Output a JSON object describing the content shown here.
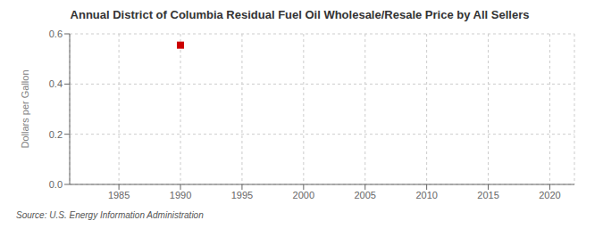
{
  "chart_data": {
    "type": "scatter",
    "title": "Annual District of Columbia Residual Fuel Oil Wholesale/Resale Price by All Sellers",
    "ylabel": "Dollars per Gallon",
    "annotations": [
      "Source: U.S. Energy Information Administration"
    ],
    "x": [
      1990
    ],
    "values": [
      0.555
    ],
    "color": "#cc0000",
    "marker": "square",
    "xlim": [
      1981,
      2022
    ],
    "xticks": [
      1985,
      1990,
      1995,
      2000,
      2005,
      2010,
      2015,
      2020
    ],
    "ylim": [
      0.0,
      0.6
    ],
    "yticks": [
      {
        "value": 0.0,
        "label": "0.0"
      },
      0.2,
      0.4,
      0.6
    ],
    "grid": true
  }
}
